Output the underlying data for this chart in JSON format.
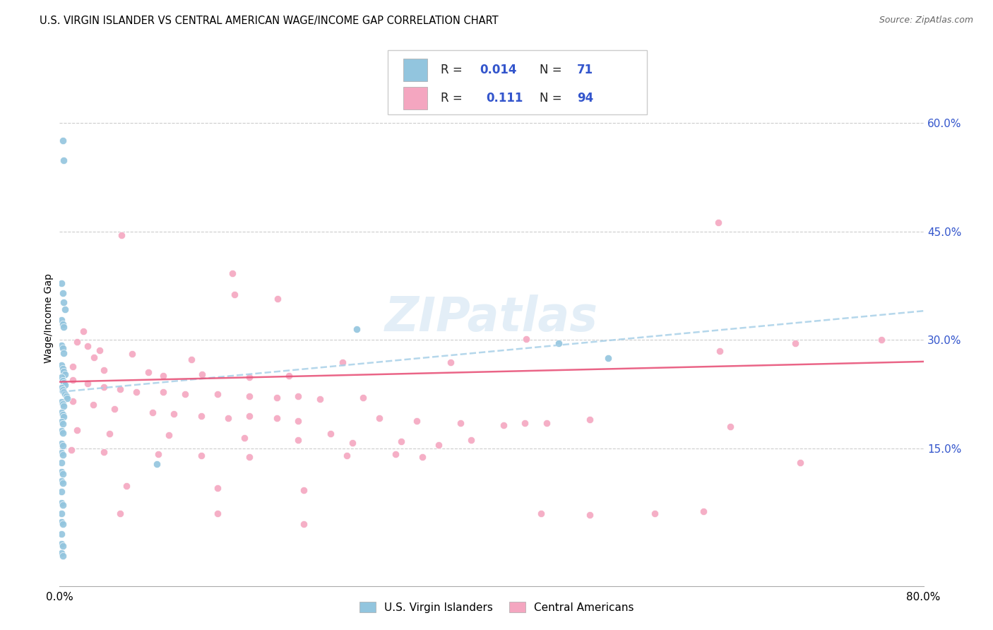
{
  "title": "U.S. VIRGIN ISLANDER VS CENTRAL AMERICAN WAGE/INCOME GAP CORRELATION CHART",
  "source": "Source: ZipAtlas.com",
  "ylabel": "Wage/Income Gap",
  "right_yticks": [
    "60.0%",
    "45.0%",
    "30.0%",
    "15.0%"
  ],
  "right_ytick_vals": [
    0.6,
    0.45,
    0.3,
    0.15
  ],
  "xlim": [
    0.0,
    0.8
  ],
  "ylim": [
    -0.04,
    0.7
  ],
  "watermark": "ZIPatlas",
  "color_blue": "#92c5de",
  "color_pink": "#f4a6c0",
  "trendline_blue": "#a8d0e8",
  "trendline_pink": "#e8547a",
  "background_color": "#ffffff",
  "grid_color": "#cccccc",
  "blue_trend_x": [
    0.0,
    0.8
  ],
  "blue_trend_y": [
    0.228,
    0.34
  ],
  "pink_trend_x": [
    0.0,
    0.8
  ],
  "pink_trend_y": [
    0.242,
    0.27
  ],
  "blue_scatter": [
    [
      0.003,
      0.575
    ],
    [
      0.004,
      0.548
    ],
    [
      0.002,
      0.378
    ],
    [
      0.003,
      0.365
    ],
    [
      0.004,
      0.352
    ],
    [
      0.005,
      0.342
    ],
    [
      0.002,
      0.328
    ],
    [
      0.003,
      0.322
    ],
    [
      0.004,
      0.318
    ],
    [
      0.002,
      0.292
    ],
    [
      0.003,
      0.288
    ],
    [
      0.004,
      0.282
    ],
    [
      0.002,
      0.265
    ],
    [
      0.003,
      0.26
    ],
    [
      0.004,
      0.256
    ],
    [
      0.005,
      0.252
    ],
    [
      0.002,
      0.248
    ],
    [
      0.003,
      0.244
    ],
    [
      0.004,
      0.241
    ],
    [
      0.005,
      0.238
    ],
    [
      0.002,
      0.234
    ],
    [
      0.003,
      0.231
    ],
    [
      0.004,
      0.228
    ],
    [
      0.005,
      0.225
    ],
    [
      0.006,
      0.222
    ],
    [
      0.007,
      0.219
    ],
    [
      0.002,
      0.214
    ],
    [
      0.003,
      0.211
    ],
    [
      0.004,
      0.208
    ],
    [
      0.002,
      0.2
    ],
    [
      0.003,
      0.197
    ],
    [
      0.004,
      0.194
    ],
    [
      0.002,
      0.187
    ],
    [
      0.003,
      0.184
    ],
    [
      0.002,
      0.174
    ],
    [
      0.003,
      0.171
    ],
    [
      0.002,
      0.157
    ],
    [
      0.003,
      0.154
    ],
    [
      0.002,
      0.144
    ],
    [
      0.003,
      0.141
    ],
    [
      0.002,
      0.13
    ],
    [
      0.002,
      0.118
    ],
    [
      0.003,
      0.115
    ],
    [
      0.002,
      0.105
    ],
    [
      0.003,
      0.102
    ],
    [
      0.002,
      0.09
    ],
    [
      0.002,
      0.075
    ],
    [
      0.003,
      0.072
    ],
    [
      0.002,
      0.06
    ],
    [
      0.002,
      0.048
    ],
    [
      0.003,
      0.045
    ],
    [
      0.002,
      0.032
    ],
    [
      0.002,
      0.018
    ],
    [
      0.003,
      0.015
    ],
    [
      0.002,
      0.005
    ],
    [
      0.003,
      0.002
    ],
    [
      0.09,
      0.128
    ],
    [
      0.275,
      0.315
    ],
    [
      0.462,
      0.295
    ],
    [
      0.508,
      0.275
    ]
  ],
  "pink_scatter": [
    [
      0.057,
      0.445
    ],
    [
      0.16,
      0.392
    ],
    [
      0.162,
      0.363
    ],
    [
      0.202,
      0.357
    ],
    [
      0.61,
      0.462
    ],
    [
      0.022,
      0.312
    ],
    [
      0.016,
      0.297
    ],
    [
      0.026,
      0.291
    ],
    [
      0.037,
      0.286
    ],
    [
      0.067,
      0.281
    ],
    [
      0.032,
      0.276
    ],
    [
      0.122,
      0.273
    ],
    [
      0.262,
      0.269
    ],
    [
      0.362,
      0.269
    ],
    [
      0.432,
      0.301
    ],
    [
      0.012,
      0.263
    ],
    [
      0.041,
      0.258
    ],
    [
      0.082,
      0.255
    ],
    [
      0.096,
      0.25
    ],
    [
      0.132,
      0.252
    ],
    [
      0.176,
      0.248
    ],
    [
      0.212,
      0.25
    ],
    [
      0.012,
      0.245
    ],
    [
      0.026,
      0.24
    ],
    [
      0.041,
      0.235
    ],
    [
      0.056,
      0.232
    ],
    [
      0.071,
      0.228
    ],
    [
      0.096,
      0.228
    ],
    [
      0.116,
      0.225
    ],
    [
      0.146,
      0.225
    ],
    [
      0.176,
      0.222
    ],
    [
      0.201,
      0.22
    ],
    [
      0.221,
      0.222
    ],
    [
      0.241,
      0.218
    ],
    [
      0.281,
      0.22
    ],
    [
      0.012,
      0.215
    ],
    [
      0.031,
      0.21
    ],
    [
      0.051,
      0.205
    ],
    [
      0.086,
      0.2
    ],
    [
      0.106,
      0.198
    ],
    [
      0.131,
      0.195
    ],
    [
      0.156,
      0.192
    ],
    [
      0.176,
      0.195
    ],
    [
      0.201,
      0.192
    ],
    [
      0.221,
      0.188
    ],
    [
      0.296,
      0.192
    ],
    [
      0.331,
      0.188
    ],
    [
      0.371,
      0.185
    ],
    [
      0.411,
      0.182
    ],
    [
      0.431,
      0.185
    ],
    [
      0.451,
      0.185
    ],
    [
      0.016,
      0.175
    ],
    [
      0.046,
      0.17
    ],
    [
      0.101,
      0.168
    ],
    [
      0.171,
      0.165
    ],
    [
      0.221,
      0.162
    ],
    [
      0.271,
      0.158
    ],
    [
      0.316,
      0.16
    ],
    [
      0.351,
      0.155
    ],
    [
      0.381,
      0.162
    ],
    [
      0.251,
      0.17
    ],
    [
      0.011,
      0.148
    ],
    [
      0.041,
      0.145
    ],
    [
      0.091,
      0.142
    ],
    [
      0.131,
      0.14
    ],
    [
      0.176,
      0.138
    ],
    [
      0.266,
      0.14
    ],
    [
      0.311,
      0.142
    ],
    [
      0.336,
      0.138
    ],
    [
      0.491,
      0.19
    ],
    [
      0.611,
      0.285
    ],
    [
      0.621,
      0.18
    ],
    [
      0.681,
      0.295
    ],
    [
      0.686,
      0.13
    ],
    [
      0.761,
      0.3
    ],
    [
      0.062,
      0.098
    ],
    [
      0.146,
      0.095
    ],
    [
      0.226,
      0.092
    ],
    [
      0.056,
      0.06
    ],
    [
      0.146,
      0.06
    ],
    [
      0.226,
      0.045
    ],
    [
      0.446,
      0.06
    ],
    [
      0.491,
      0.058
    ],
    [
      0.551,
      0.06
    ],
    [
      0.596,
      0.063
    ]
  ]
}
